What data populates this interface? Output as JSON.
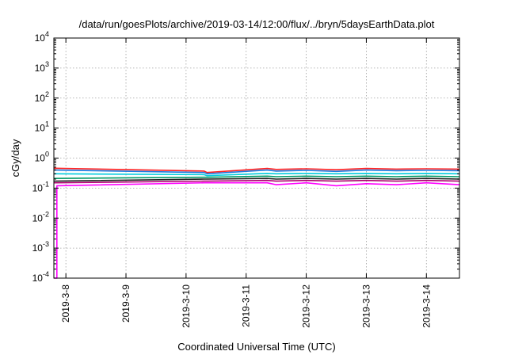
{
  "chart_data": {
    "type": "line",
    "title": "/data/run/goesPlots/archive/2019-03-14/12:00/flux/../bryn/5daysEarthData.plot",
    "xlabel": "Coordinated Universal Time (UTC)",
    "ylabel": "cGy/day",
    "yscale": "log",
    "ylim": [
      0.0001,
      10000
    ],
    "xlim": [
      -0.2,
      6.55
    ],
    "grid": true,
    "legend": "none",
    "y_ticks": [
      {
        "base": "10",
        "exp": "-4",
        "value": 0.0001
      },
      {
        "base": "10",
        "exp": "-3",
        "value": 0.001
      },
      {
        "base": "10",
        "exp": "-2",
        "value": 0.01
      },
      {
        "base": "10",
        "exp": "-1",
        "value": 0.1
      },
      {
        "base": "10",
        "exp": "0",
        "value": 1
      },
      {
        "base": "10",
        "exp": "1",
        "value": 10
      },
      {
        "base": "10",
        "exp": "2",
        "value": 100
      },
      {
        "base": "10",
        "exp": "3",
        "value": 1000
      },
      {
        "base": "10",
        "exp": "4",
        "value": 10000
      }
    ],
    "x_ticks": [
      {
        "label": "2019-3-8",
        "value": 0
      },
      {
        "label": "2019-3-9",
        "value": 1
      },
      {
        "label": "2019-3-10",
        "value": 2
      },
      {
        "label": "2019-3-11",
        "value": 3
      },
      {
        "label": "2019-3-12",
        "value": 4
      },
      {
        "label": "2019-3-13",
        "value": 5
      },
      {
        "label": "2019-3-14",
        "value": 6
      }
    ],
    "series": [
      {
        "color": "#ff2020",
        "x": [
          -0.2,
          2.3,
          2.35,
          3.35,
          3.5,
          4.0,
          4.5,
          5.0,
          5.5,
          6.0,
          6.55
        ],
        "y": [
          0.46,
          0.37,
          0.33,
          0.45,
          0.42,
          0.44,
          0.41,
          0.45,
          0.43,
          0.44,
          0.43
        ]
      },
      {
        "color": "#1a7ae0",
        "x": [
          -0.2,
          2.3,
          2.35,
          3.35,
          3.5,
          4.0,
          4.5,
          5.0,
          5.5,
          6.0,
          6.55
        ],
        "y": [
          0.4,
          0.33,
          0.3,
          0.4,
          0.37,
          0.39,
          0.36,
          0.4,
          0.38,
          0.39,
          0.38
        ]
      },
      {
        "color": "#00ccdd",
        "x": [
          -0.2,
          2.3,
          2.35,
          3.35,
          3.5,
          4.0,
          4.5,
          5.0,
          5.5,
          6.0,
          6.55
        ],
        "y": [
          0.3,
          0.28,
          0.26,
          0.31,
          0.3,
          0.31,
          0.3,
          0.31,
          0.3,
          0.31,
          0.3
        ]
      },
      {
        "color": "#009966",
        "x": [
          -0.2,
          2.3,
          2.35,
          3.35,
          3.5,
          4.0,
          4.5,
          5.0,
          5.5,
          6.0,
          6.55
        ],
        "y": [
          0.21,
          0.23,
          0.23,
          0.25,
          0.24,
          0.25,
          0.24,
          0.25,
          0.24,
          0.25,
          0.24
        ]
      },
      {
        "color": "#202020",
        "x": [
          -0.2,
          2.3,
          2.35,
          3.35,
          3.5,
          4.0,
          4.5,
          5.0,
          5.5,
          6.0,
          6.55
        ],
        "y": [
          0.17,
          0.2,
          0.2,
          0.21,
          0.2,
          0.21,
          0.2,
          0.21,
          0.2,
          0.21,
          0.2
        ]
      },
      {
        "color": "#b00070",
        "x": [
          -0.2,
          2.3,
          2.35,
          3.35,
          3.5,
          4.0,
          4.5,
          5.0,
          5.5,
          6.0,
          6.55
        ],
        "y": [
          0.15,
          0.17,
          0.17,
          0.18,
          0.17,
          0.18,
          0.17,
          0.18,
          0.17,
          0.18,
          0.17
        ]
      },
      {
        "color": "#ff00ff",
        "x": [
          -0.2,
          -0.15,
          -0.15,
          2.3,
          2.35,
          3.35,
          3.5,
          4.0,
          4.5,
          5.0,
          5.5,
          6.0,
          6.55
        ],
        "y": [
          0.0001,
          0.0001,
          0.12,
          0.15,
          0.15,
          0.15,
          0.13,
          0.15,
          0.12,
          0.14,
          0.13,
          0.15,
          0.13
        ]
      }
    ]
  }
}
